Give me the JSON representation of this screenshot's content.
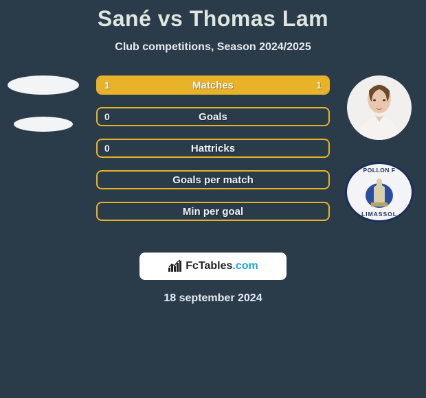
{
  "title": "Sané vs Thomas Lam",
  "subtitle": "Club competitions, Season 2024/2025",
  "date": "18 september 2024",
  "colors": {
    "card_bg": "#2a3b4a",
    "row_border": "#e8b328",
    "row_fill": "#e8b328",
    "text": "#eef3f7",
    "title_color": "#dfe6df"
  },
  "left": {
    "player_name": "Sané",
    "placeholder": true
  },
  "right": {
    "player_name": "Thomas Lam",
    "club_top_text": "POLLON F",
    "club_bottom_text": "LIMASSOL",
    "club_border": "#1b2f58"
  },
  "rows": [
    {
      "label": "Matches",
      "left": "1",
      "right": "1",
      "left_pct": 50,
      "right_pct": 50
    },
    {
      "label": "Goals",
      "left": "0",
      "right": "",
      "left_pct": 0,
      "right_pct": 0
    },
    {
      "label": "Hattricks",
      "left": "0",
      "right": "",
      "left_pct": 0,
      "right_pct": 0
    },
    {
      "label": "Goals per match",
      "left": "",
      "right": "",
      "left_pct": 0,
      "right_pct": 0
    },
    {
      "label": "Min per goal",
      "left": "",
      "right": "",
      "left_pct": 0,
      "right_pct": 0
    }
  ],
  "brand": {
    "name": "FcTables",
    "domain": ".com"
  }
}
